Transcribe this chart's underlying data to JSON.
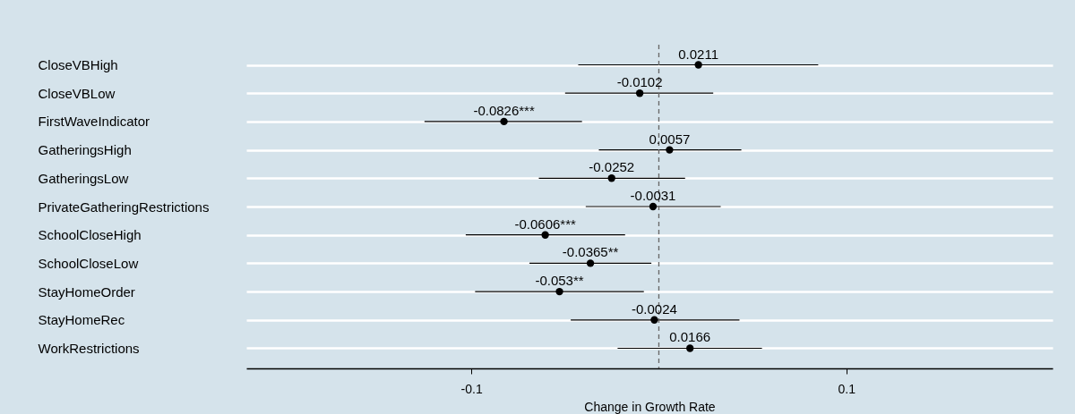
{
  "chart_data": {
    "type": "scatter",
    "orientation": "horizontal",
    "xlabel": "Change in Growth Rate",
    "categories": [
      "CloseVBHigh",
      "CloseVBLow",
      "FirstWaveIndicator",
      "GatheringsHigh",
      "GatheringsLow",
      "PrivateGatheringRestrictions",
      "SchoolCloseHigh",
      "SchoolCloseLow",
      "StayHomeOrder",
      "StayHomeRec",
      "WorkRestrictions"
    ],
    "values": [
      0.0211,
      -0.0102,
      -0.0826,
      0.0057,
      -0.0252,
      -0.0031,
      -0.0606,
      -0.0365,
      -0.053,
      -0.0024,
      0.0166
    ],
    "value_labels": [
      "0.0211",
      "-0.0102",
      "-0.0826***",
      "0.0057",
      "-0.0252",
      "-0.0031",
      "-0.0606***",
      "-0.0365**",
      "-0.053**",
      "-0.0024",
      "0.0166"
    ],
    "errors": [
      [
        -0.043,
        0.085
      ],
      [
        -0.05,
        0.029
      ],
      [
        -0.125,
        -0.041
      ],
      [
        -0.032,
        0.044
      ],
      [
        -0.064,
        0.014
      ],
      [
        -0.039,
        0.033
      ],
      [
        -0.103,
        -0.018
      ],
      [
        -0.069,
        -0.004
      ],
      [
        -0.098,
        -0.008
      ],
      [
        -0.047,
        0.043
      ],
      [
        -0.022,
        0.055
      ]
    ],
    "color": "#000000",
    "marker": "circle",
    "xlim": [
      -0.22,
      0.21
    ],
    "xticks": [
      -0.1,
      0.1
    ],
    "grid": "y",
    "ref_lines": [
      {
        "axis": "x",
        "value": 0,
        "color": "#666666",
        "line_style": "dashed"
      }
    ]
  }
}
